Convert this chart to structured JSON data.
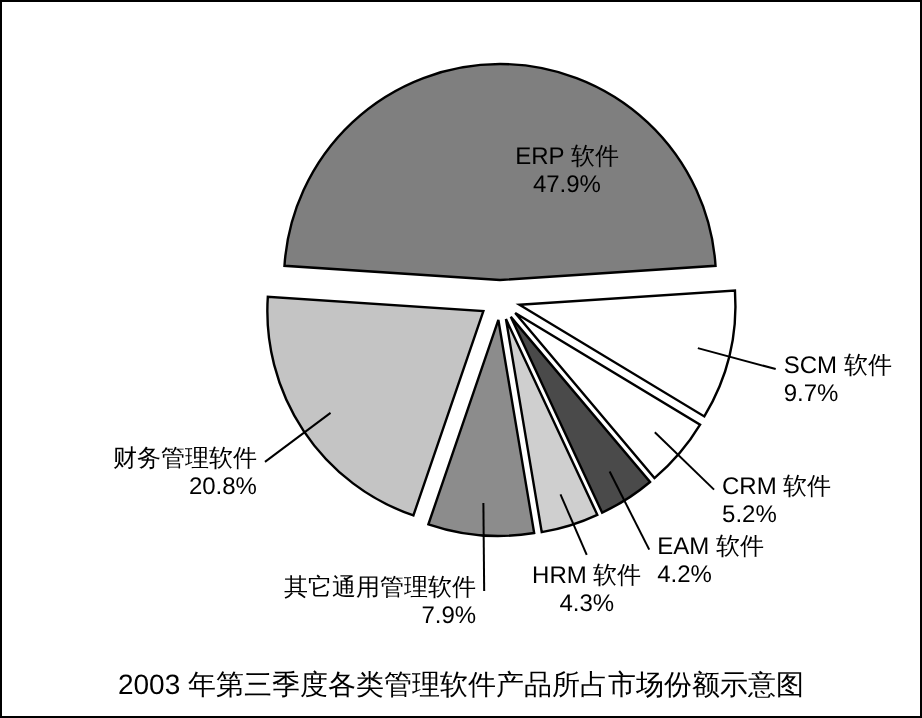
{
  "chart_data": {
    "type": "pie",
    "title": "2003 年第三季度各类管理软件产品所占市场份额示意图",
    "categories": [
      "ERP 软件",
      "SCM 软件",
      "CRM 软件",
      "EAM 软件",
      "HRM 软件",
      "其它通用管理软件",
      "财务管理软件"
    ],
    "values": [
      47.9,
      9.7,
      5.2,
      4.2,
      4.3,
      7.9,
      20.8
    ],
    "value_labels": [
      "47.9%",
      "9.7%",
      "5.2%",
      "4.2%",
      "4.3%",
      "7.9%",
      "20.8%"
    ],
    "colors": [
      "#7f7f7f",
      "#ffffff",
      "#ffffff",
      "#4a4a4a",
      "#cfcfcf",
      "#8c8c8c",
      "#c4c4c4"
    ]
  }
}
